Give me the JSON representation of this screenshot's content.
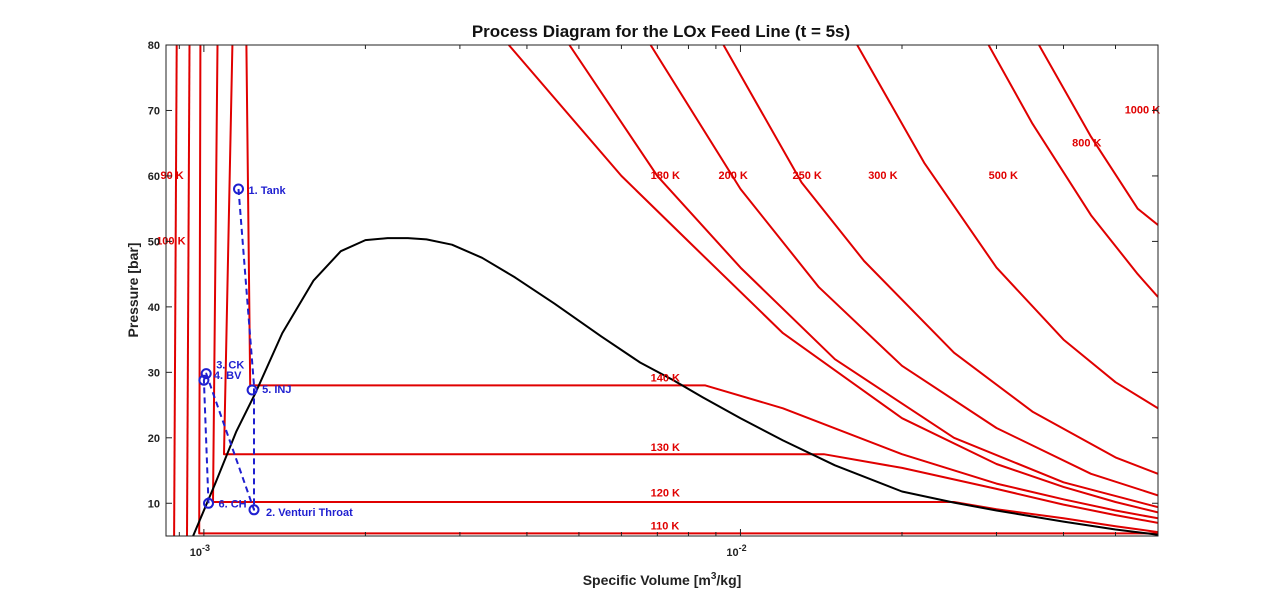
{
  "chart_data": {
    "type": "line",
    "title": "Process Diagram for the LOx Feed Line (t = 5s)",
    "xlabel": {
      "main": "Specific Volume [m",
      "sup": "3",
      "end": "/kg]"
    },
    "ylabel": "Pressure [bar]",
    "x_scale": "log",
    "xlim": [
      0.00085,
      0.06
    ],
    "ylim": [
      5,
      80
    ],
    "y_ticks": [
      10,
      20,
      30,
      40,
      50,
      60,
      70,
      80
    ],
    "x_ticks": [
      {
        "value": 0.001,
        "base": "10",
        "exp": "-3"
      },
      {
        "value": 0.01,
        "base": "10",
        "exp": "-2"
      }
    ],
    "colors": {
      "isotherm": "#e00000",
      "dome": "#000000",
      "process": "#1f1fd0"
    },
    "saturation_dome": {
      "v": [
        0.000955,
        0.00105,
        0.00115,
        0.00125,
        0.0014,
        0.0016,
        0.0018,
        0.002,
        0.0022,
        0.0024,
        0.0026,
        0.0029,
        0.0033,
        0.0038,
        0.0045,
        0.0055,
        0.0065,
        0.0075,
        0.0085,
        0.01,
        0.012,
        0.015,
        0.02,
        0.025,
        0.03,
        0.04,
        0.05,
        0.06
      ],
      "p": [
        5,
        13,
        21,
        27,
        36,
        44,
        48.5,
        50.2,
        50.5,
        50.5,
        50.3,
        49.5,
        47.5,
        44.5,
        40.5,
        35.5,
        31.5,
        28.8,
        26.2,
        23,
        19.6,
        15.8,
        11.8,
        10.1,
        8.9,
        7.2,
        6.0,
        5.2
      ]
    },
    "isotherms": [
      {
        "name": "90 K",
        "v": [
          0.00088,
          0.00089
        ],
        "p": [
          5,
          80
        ]
      },
      {
        "name": "100 K",
        "v": [
          0.00093,
          0.00094
        ],
        "p": [
          5,
          80
        ]
      },
      {
        "name": "110 K",
        "v": [
          0.000985,
          0.00098,
          0.06
        ],
        "p": [
          80,
          5.4,
          5.4
        ]
      },
      {
        "name": "120 K",
        "v": [
          0.00106,
          0.00104,
          0.00122,
          0.025,
          0.03,
          0.04,
          0.05,
          0.06
        ],
        "p": [
          80,
          10.2,
          10.2,
          10.2,
          9.1,
          7.7,
          6.5,
          5.6
        ]
      },
      {
        "name": "130 K",
        "v": [
          0.00113,
          0.00109,
          0.00122,
          0.0143,
          0.02,
          0.03,
          0.04,
          0.05,
          0.06
        ],
        "p": [
          80,
          17.5,
          17.5,
          17.5,
          15.4,
          12.2,
          9.8,
          8.2,
          7.0
        ]
      },
      {
        "name": "140 K",
        "v": [
          0.0012,
          0.00122,
          0.0086,
          0.012,
          0.02,
          0.03,
          0.04,
          0.05,
          0.06
        ],
        "p": [
          80,
          28.0,
          28.0,
          24.5,
          17.5,
          13.0,
          10.6,
          8.9,
          7.7
        ]
      },
      {
        "name": "180 K",
        "v": [
          0.0037,
          0.006,
          0.008,
          0.012,
          0.02,
          0.03,
          0.04,
          0.05,
          0.06
        ],
        "p": [
          80,
          60,
          50,
          36,
          23,
          16,
          12.5,
          10.2,
          8.6
        ]
      },
      {
        "name": "200 K",
        "v": [
          0.0048,
          0.007,
          0.01,
          0.015,
          0.025,
          0.04,
          0.06
        ],
        "p": [
          80,
          60,
          46,
          32,
          20,
          13.2,
          9.4
        ]
      },
      {
        "name": "250 K",
        "v": [
          0.0068,
          0.01,
          0.014,
          0.02,
          0.03,
          0.045,
          0.06
        ],
        "p": [
          80,
          58,
          43,
          31,
          21.5,
          14.5,
          11.2
        ]
      },
      {
        "name": "300 K",
        "v": [
          0.0093,
          0.013,
          0.017,
          0.025,
          0.035,
          0.05,
          0.06
        ],
        "p": [
          80,
          59,
          47,
          33,
          24,
          17,
          14.5
        ]
      },
      {
        "name": "500 K",
        "v": [
          0.0165,
          0.022,
          0.03,
          0.04,
          0.05,
          0.06
        ],
        "p": [
          80,
          62,
          46,
          35,
          28.5,
          24.5
        ]
      },
      {
        "name": "800 K",
        "v": [
          0.029,
          0.035,
          0.045,
          0.055,
          0.06
        ],
        "p": [
          80,
          68,
          54,
          45,
          41.5
        ]
      },
      {
        "name": "1000 K",
        "v": [
          0.036,
          0.045,
          0.055,
          0.06
        ],
        "p": [
          80,
          66,
          55,
          52.5
        ]
      }
    ],
    "isotherm_labels": [
      {
        "text": "90 K",
        "v": 0.00083,
        "p": 59.5
      },
      {
        "text": "100 K",
        "v": 0.000815,
        "p": 49.5
      },
      {
        "text": "110 K",
        "v": 0.0068,
        "p": 6.0
      },
      {
        "text": "120 K",
        "v": 0.0068,
        "p": 11.0
      },
      {
        "text": "130 K",
        "v": 0.0068,
        "p": 18.0
      },
      {
        "text": "140 K",
        "v": 0.0068,
        "p": 28.6
      },
      {
        "text": "180 K",
        "v": 0.0068,
        "p": 59.5
      },
      {
        "text": "200 K",
        "v": 0.0091,
        "p": 59.5
      },
      {
        "text": "250 K",
        "v": 0.0125,
        "p": 59.5
      },
      {
        "text": "300 K",
        "v": 0.0173,
        "p": 59.5
      },
      {
        "text": "500 K",
        "v": 0.029,
        "p": 59.5
      },
      {
        "text": "800 K",
        "v": 0.0415,
        "p": 64.5
      },
      {
        "text": "1000 K",
        "v": 0.052,
        "p": 69.5
      }
    ],
    "process_points": [
      {
        "label": "1. Tank",
        "v": 0.00116,
        "p": 58
      },
      {
        "label": "2. Venturi Throat",
        "v": 0.00124,
        "p": 9
      },
      {
        "label": "3. CK",
        "v": 0.00101,
        "p": 29.8
      },
      {
        "label": "4. BV",
        "v": 0.001,
        "p": 28.8
      },
      {
        "label": "5. INJ",
        "v": 0.00123,
        "p": 27.3
      },
      {
        "label": "6. CH",
        "v": 0.00102,
        "p": 10
      }
    ],
    "process_path": [
      {
        "v": 0.00116,
        "p": 58
      },
      {
        "v": 0.00124,
        "p": 28
      },
      {
        "v": 0.00124,
        "p": 9
      },
      {
        "v": 0.00101,
        "p": 29.8
      },
      {
        "v": 0.001,
        "p": 28.8
      },
      {
        "v": 0.00102,
        "p": 10
      }
    ],
    "grid": false
  }
}
